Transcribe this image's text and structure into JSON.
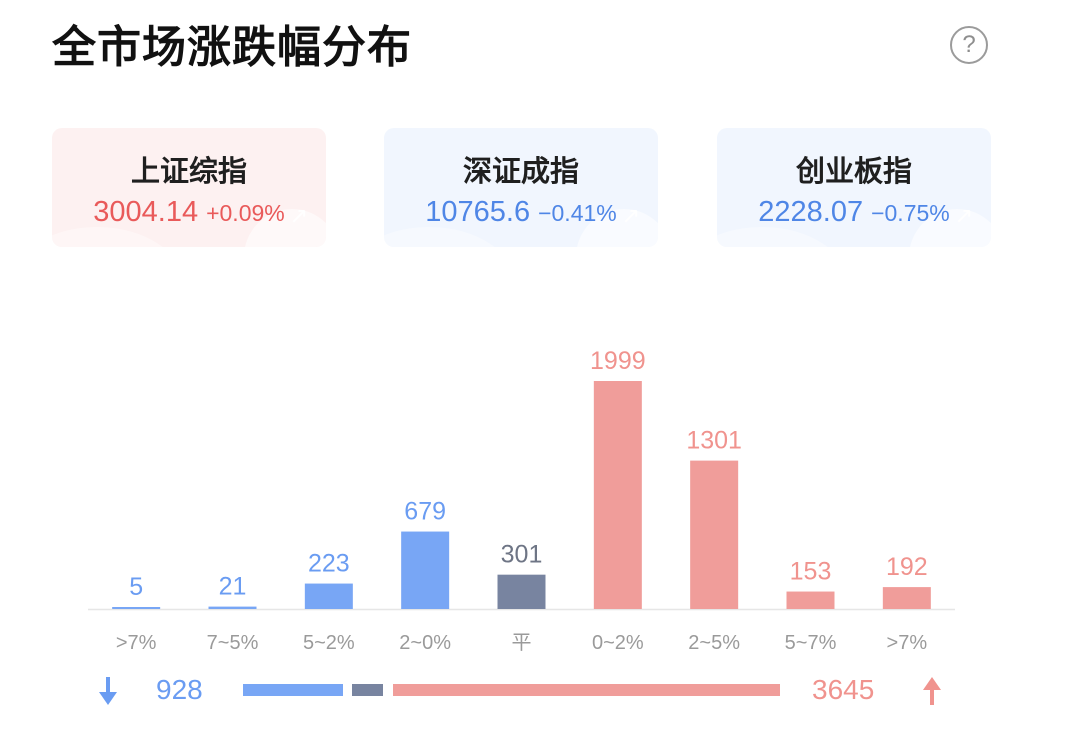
{
  "title": "全市场涨跌幅分布",
  "help_icon": "question-circle-icon",
  "indices": [
    {
      "name": "上证综指",
      "price": "3004.14",
      "change": "+0.09%",
      "direction": "up"
    },
    {
      "name": "深证成指",
      "price": "10765.6",
      "change": "−0.41%",
      "direction": "down"
    },
    {
      "name": "创业板指",
      "price": "2228.07",
      "change": "−0.75%",
      "direction": "down"
    }
  ],
  "colors": {
    "down": "#78a6f5",
    "flat": "#7884a0",
    "up": "#f09d9a",
    "down_text": "#6a9cf2",
    "flat_text": "#6e7585",
    "up_text": "#f0938e"
  },
  "chart_data": {
    "type": "bar",
    "categories": [
      ">7%",
      "7~5%",
      "5~2%",
      "2~0%",
      "平",
      "0~2%",
      "2~5%",
      "5~7%",
      ">7%"
    ],
    "values": [
      5,
      21,
      223,
      679,
      301,
      1999,
      1301,
      153,
      192
    ],
    "groups": [
      "down",
      "down",
      "down",
      "down",
      "flat",
      "up",
      "up",
      "up",
      "up"
    ],
    "title": "全市场涨跌幅分布",
    "xlabel": "",
    "ylabel": "",
    "ylim": [
      0,
      1999
    ],
    "grid": false
  },
  "summary": {
    "down_count": "928",
    "flat_count": "301",
    "up_count": "3645",
    "down_icon": "arrow-down-icon",
    "up_icon": "arrow-up-icon"
  }
}
